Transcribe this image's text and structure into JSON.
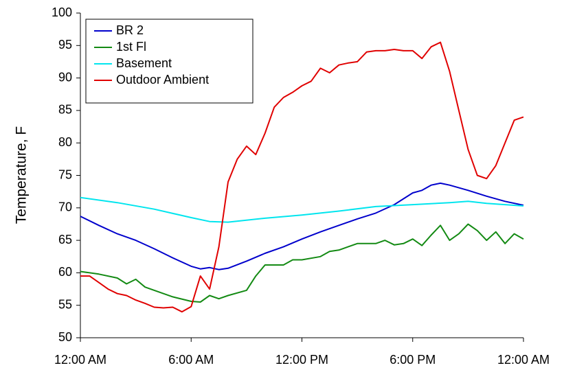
{
  "chart_data": {
    "type": "line",
    "ylabel": "Temperature, F",
    "xlim": [
      0,
      24
    ],
    "xticks": [
      {
        "value": 0,
        "label": "12:00 AM"
      },
      {
        "value": 6,
        "label": "6:00 AM"
      },
      {
        "value": 12,
        "label": "12:00 PM"
      },
      {
        "value": 18,
        "label": "6:00 PM"
      },
      {
        "value": 24,
        "label": "12:00 AM"
      }
    ],
    "ylim": [
      50,
      100
    ],
    "yticks": [
      50,
      55,
      60,
      65,
      70,
      75,
      80,
      85,
      90,
      95,
      100
    ],
    "legend": "top-left",
    "grid": false,
    "series": [
      {
        "name": "BR 2",
        "color": "#0000cc",
        "x": [
          0,
          1,
          2,
          3,
          4,
          5,
          6,
          6.5,
          7,
          7.5,
          8,
          9,
          10,
          11,
          12,
          13,
          14,
          15,
          16,
          17,
          18,
          18.5,
          19,
          19.5,
          20,
          21,
          22,
          23,
          24
        ],
        "values": [
          68.7,
          67.3,
          66,
          65,
          63.7,
          62.3,
          61,
          60.6,
          60.8,
          60.5,
          60.7,
          61.8,
          63,
          64,
          65.2,
          66.3,
          67.3,
          68.3,
          69.2,
          70.5,
          72.3,
          72.7,
          73.5,
          73.8,
          73.5,
          72.7,
          71.8,
          71,
          70.4
        ]
      },
      {
        "name": "1st Fl",
        "color": "#138a13",
        "x": [
          0,
          1,
          2,
          2.5,
          3,
          3.5,
          4,
          5,
          6,
          6.5,
          7,
          7.5,
          8,
          9,
          9.5,
          10,
          11,
          11.5,
          12,
          13,
          13.5,
          14,
          15,
          16,
          16.5,
          17,
          17.5,
          18,
          18.5,
          19,
          19.5,
          20,
          20.5,
          21,
          21.5,
          22,
          22.5,
          23,
          23.5,
          24
        ],
        "values": [
          60.2,
          59.8,
          59.2,
          58.3,
          59,
          57.8,
          57.3,
          56.3,
          55.6,
          55.5,
          56.5,
          56,
          56.5,
          57.3,
          59.5,
          61.2,
          61.2,
          62,
          62,
          62.5,
          63.3,
          63.5,
          64.5,
          64.5,
          65,
          64.3,
          64.5,
          65.2,
          64.2,
          65.8,
          67.3,
          65,
          66,
          67.5,
          66.5,
          65,
          66.3,
          64.5,
          66,
          65.2
        ]
      },
      {
        "name": "Basement",
        "color": "#00e5ee",
        "x": [
          0,
          2,
          4,
          6,
          7,
          8,
          10,
          12,
          14,
          16,
          18,
          20,
          21,
          22,
          24
        ],
        "values": [
          71.6,
          70.8,
          69.8,
          68.5,
          67.9,
          67.8,
          68.4,
          68.9,
          69.5,
          70.2,
          70.5,
          70.8,
          71,
          70.7,
          70.3
        ]
      },
      {
        "name": "Outdoor Ambient",
        "color": "#e00000",
        "x": [
          0,
          0.5,
          1,
          1.5,
          2,
          2.5,
          3,
          3.5,
          4,
          4.5,
          5,
          5.5,
          6,
          6.5,
          7,
          7.5,
          8,
          8.5,
          9,
          9.5,
          10,
          10.5,
          11,
          11.5,
          12,
          12.5,
          13,
          13.5,
          14,
          14.5,
          15,
          15.5,
          16,
          16.5,
          17,
          17.5,
          18,
          18.5,
          19,
          19.5,
          20,
          20.5,
          21,
          21.5,
          22,
          22.5,
          23,
          23.5,
          24
        ],
        "values": [
          59.5,
          59.5,
          58.5,
          57.5,
          56.8,
          56.5,
          55.8,
          55.3,
          54.7,
          54.6,
          54.7,
          54,
          54.8,
          59.5,
          57.5,
          64,
          74,
          77.5,
          79.5,
          78.2,
          81.5,
          85.5,
          87,
          87.8,
          88.8,
          89.5,
          91.5,
          90.8,
          92,
          92.3,
          92.5,
          94,
          94.2,
          94.2,
          94.4,
          94.2,
          94.2,
          93,
          94.8,
          95.5,
          91,
          85,
          79,
          75,
          74.5,
          76.5,
          80,
          83.5,
          84
        ]
      }
    ]
  }
}
